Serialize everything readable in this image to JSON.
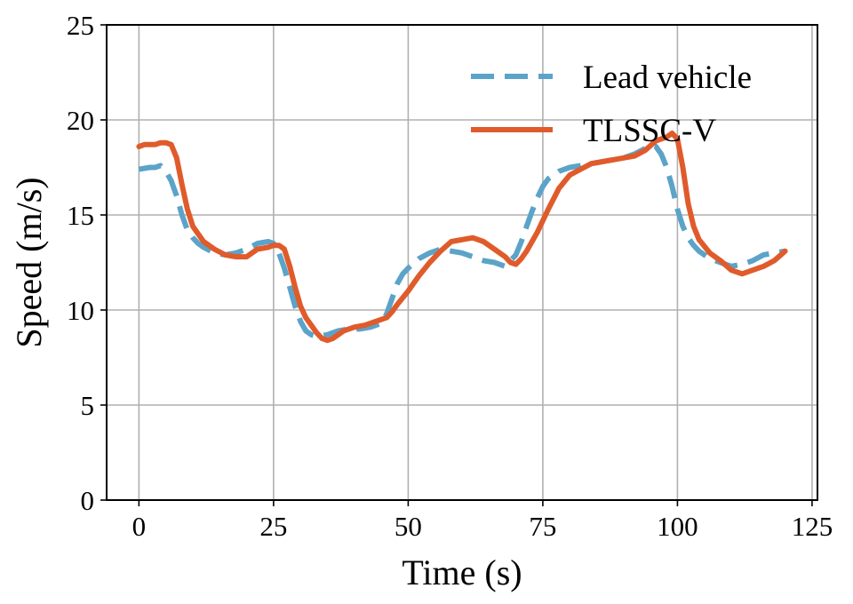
{
  "chart_data": {
    "type": "line",
    "xlabel": "Time (s)",
    "ylabel": "Speed (m/s)",
    "xlim": [
      -6,
      126
    ],
    "ylim": [
      0,
      25
    ],
    "xticks": [
      0,
      25,
      50,
      75,
      100,
      125
    ],
    "yticks": [
      0,
      5,
      10,
      15,
      20,
      25
    ],
    "grid": true,
    "legend_position": "top-right",
    "series": [
      {
        "name": "Lead vehicle",
        "color": "#5ba3c9",
        "style": "dashed",
        "x": [
          0,
          2,
          3,
          4,
          5,
          6,
          7,
          8,
          9,
          10,
          11,
          12,
          14,
          16,
          18,
          20,
          22,
          24,
          25,
          26,
          27,
          28,
          29,
          30,
          31,
          32,
          33,
          35,
          37,
          39,
          41,
          43,
          45,
          46,
          47,
          48,
          49,
          50,
          52,
          54,
          56,
          58,
          60,
          62,
          64,
          66,
          68,
          70,
          71,
          72,
          73,
          74,
          75,
          76,
          78,
          80,
          82,
          84,
          86,
          88,
          90,
          92,
          94,
          95,
          96,
          97,
          98,
          99,
          100,
          101,
          102,
          103,
          104,
          106,
          108,
          110,
          112,
          114,
          116,
          118,
          120
        ],
        "y": [
          17.4,
          17.5,
          17.5,
          17.6,
          17.3,
          16.8,
          16.0,
          15.0,
          14.2,
          13.8,
          13.5,
          13.3,
          13.0,
          12.9,
          13.0,
          13.2,
          13.5,
          13.6,
          13.5,
          13.0,
          12.2,
          11.2,
          10.2,
          9.4,
          8.9,
          8.7,
          8.6,
          8.7,
          8.9,
          9.0,
          9.0,
          9.1,
          9.3,
          9.8,
          10.6,
          11.4,
          11.9,
          12.2,
          12.7,
          13.0,
          13.2,
          13.1,
          13.0,
          12.8,
          12.6,
          12.5,
          12.3,
          12.9,
          13.6,
          14.4,
          15.2,
          15.9,
          16.5,
          16.9,
          17.3,
          17.5,
          17.6,
          17.7,
          17.8,
          17.9,
          18.0,
          18.2,
          18.5,
          18.7,
          18.6,
          18.2,
          17.5,
          16.5,
          15.3,
          14.4,
          13.8,
          13.4,
          13.1,
          12.7,
          12.5,
          12.3,
          12.4,
          12.6,
          12.9,
          13.0,
          13.1
        ]
      },
      {
        "name": "TLSSC-V",
        "color": "#e05b2b",
        "style": "solid",
        "x": [
          0,
          1,
          2,
          3,
          4,
          5,
          6,
          7,
          8,
          9,
          10,
          12,
          14,
          16,
          18,
          20,
          22,
          24,
          25,
          26,
          27,
          28,
          29,
          30,
          31,
          32,
          33,
          34,
          35,
          36,
          38,
          40,
          42,
          44,
          46,
          47,
          48,
          50,
          52,
          54,
          56,
          58,
          60,
          62,
          64,
          66,
          68,
          69,
          70,
          71,
          72,
          74,
          76,
          78,
          80,
          82,
          84,
          86,
          88,
          90,
          92,
          94,
          96,
          98,
          99,
          100,
          101,
          102,
          103,
          104,
          106,
          108,
          110,
          112,
          114,
          116,
          118,
          120
        ],
        "y": [
          18.6,
          18.7,
          18.7,
          18.7,
          18.8,
          18.8,
          18.7,
          18.0,
          16.6,
          15.3,
          14.4,
          13.6,
          13.2,
          12.9,
          12.8,
          12.8,
          13.2,
          13.3,
          13.4,
          13.4,
          13.2,
          12.3,
          11.2,
          10.2,
          9.6,
          9.2,
          8.8,
          8.5,
          8.4,
          8.5,
          8.9,
          9.1,
          9.2,
          9.4,
          9.6,
          9.9,
          10.3,
          11.0,
          11.8,
          12.5,
          13.1,
          13.6,
          13.7,
          13.8,
          13.6,
          13.2,
          12.8,
          12.5,
          12.4,
          12.7,
          13.1,
          14.1,
          15.3,
          16.4,
          17.1,
          17.4,
          17.7,
          17.8,
          17.9,
          18.0,
          18.1,
          18.4,
          18.9,
          19.1,
          19.3,
          19.0,
          17.5,
          15.6,
          14.4,
          13.7,
          13.0,
          12.6,
          12.1,
          11.9,
          12.1,
          12.3,
          12.6,
          13.1
        ]
      }
    ]
  }
}
